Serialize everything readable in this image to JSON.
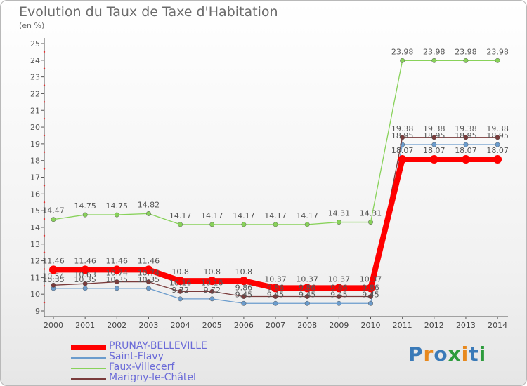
{
  "header": {
    "title": "Evolution du Taux de Taxe d'Habitation",
    "subtitle": "(en %)"
  },
  "logo": {
    "text": "Proxiti",
    "colors": [
      "#3a7ab8",
      "#e8891e",
      "#3a7ab8",
      "#2d9b3c",
      "#e8891e",
      "#3a7ab8",
      "#2d9b3c"
    ]
  },
  "chart_data": {
    "type": "line",
    "title": "Evolution du Taux de Taxe d'Habitation",
    "ylabel": "(en %)",
    "xlabel": "",
    "ylim": [
      9,
      25
    ],
    "yticks": [
      9,
      10,
      11,
      12,
      13,
      14,
      15,
      16,
      17,
      18,
      19,
      20,
      21,
      22,
      23,
      24,
      25
    ],
    "x": [
      "2000",
      "2001",
      "2002",
      "2003",
      "2004",
      "2005",
      "2006",
      "2007",
      "2008",
      "2009",
      "2010",
      "2011",
      "2012",
      "2013",
      "2014"
    ],
    "grid": false,
    "legend_position": "bottom-left",
    "series": [
      {
        "name": "PRUNAY-BELLEVILLE",
        "color": "#ff0000",
        "values": [
          11.46,
          11.46,
          11.46,
          11.46,
          10.8,
          10.8,
          10.8,
          10.37,
          10.37,
          10.37,
          10.37,
          18.07,
          18.07,
          18.07,
          18.07
        ],
        "labels": [
          "11.46",
          "11.46",
          "11.46",
          "11.46",
          "10.8",
          "10.8",
          "10.8",
          "10.37",
          "10.37",
          "10.37",
          "10.37",
          "18.07",
          "18.07",
          "18.07",
          "18.07"
        ]
      },
      {
        "name": "Saint-Flavy",
        "color": "#6b9ccd",
        "values": [
          10.35,
          10.35,
          10.35,
          10.35,
          9.72,
          9.72,
          9.45,
          9.45,
          9.45,
          9.45,
          9.45,
          18.95,
          18.95,
          18.95,
          18.95
        ],
        "labels": [
          "10.35",
          "10.35",
          "10.35",
          "10.35",
          "9.72",
          "9.72",
          "9.45",
          "9.45",
          "9.45",
          "9.45",
          "9.45",
          "18.95",
          "18.95",
          "18.95",
          "18.95"
        ]
      },
      {
        "name": "Faux-Villecerf",
        "color": "#88d25a",
        "values": [
          14.47,
          14.75,
          14.75,
          14.82,
          14.17,
          14.17,
          14.17,
          14.17,
          14.17,
          14.31,
          14.31,
          23.98,
          23.98,
          23.98,
          23.98
        ],
        "labels": [
          "14.47",
          "14.75",
          "14.75",
          "14.82",
          "14.17",
          "14.17",
          "14.17",
          "14.17",
          "14.17",
          "14.31",
          "14.31",
          "23.98",
          "23.98",
          "23.98",
          "23.98"
        ]
      },
      {
        "name": "Marigny-le-Châtel",
        "color": "#7a3b3b",
        "values": [
          10.54,
          10.63,
          10.74,
          10.74,
          10.16,
          10.16,
          9.86,
          9.86,
          9.86,
          9.86,
          9.86,
          19.38,
          19.38,
          19.38,
          19.38
        ],
        "labels": [
          "10.54",
          "10.63",
          "10.74",
          "10.74",
          "10.16",
          "10.16",
          "9.86",
          "9.86",
          "9.86",
          "9.86",
          "9.86",
          "19.38",
          "19.38",
          "19.38",
          "19.38"
        ]
      }
    ],
    "legend": [
      "PRUNAY-BELLEVILLE",
      "Saint-Flavy",
      "Faux-Villecerf",
      "Marigny-le-Châtel"
    ]
  }
}
